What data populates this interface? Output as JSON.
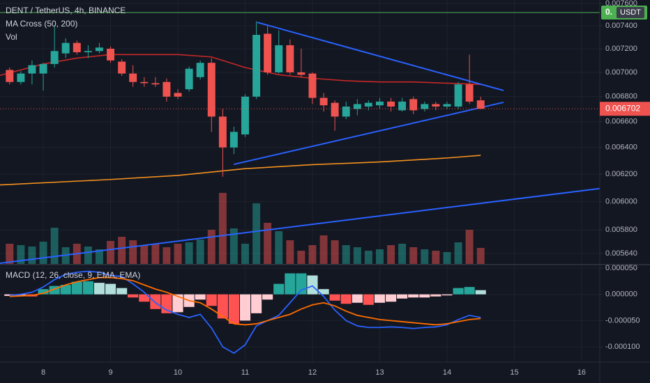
{
  "chart_data": [
    {
      "type": "candlestick",
      "title": "DENT / TetherUS, 4h, BINANCE",
      "indicators": [
        "MA Cross (50, 200)",
        "Vol"
      ],
      "log": true,
      "grid": true,
      "ylim": [
        0.005565,
        0.007631
      ],
      "yticks": [
        {
          "value": 0.0076,
          "label": "0.007600"
        },
        {
          "value": 0.0074,
          "label": "0.007400"
        },
        {
          "value": 0.0072,
          "label": "0.007200"
        },
        {
          "value": 0.007,
          "label": "0.007000"
        },
        {
          "value": 0.0068,
          "label": "0.006800"
        },
        {
          "value": 0.0066,
          "label": "0.006600"
        },
        {
          "value": 0.0064,
          "label": "0.006400"
        },
        {
          "value": 0.0062,
          "label": "0.006200"
        },
        {
          "value": 0.006,
          "label": "0.006000"
        },
        {
          "value": 0.0058,
          "label": "0.005800"
        },
        {
          "value": 0.00564,
          "label": "0.005640"
        }
      ],
      "xlim": [
        7.357,
        16.27
      ],
      "xticks": [
        8,
        9,
        10,
        11,
        12,
        13,
        14,
        15,
        16
      ],
      "x": [
        7.5,
        7.667,
        7.833,
        8,
        8.167,
        8.333,
        8.5,
        8.667,
        8.833,
        9,
        9.167,
        9.333,
        9.5,
        9.667,
        9.833,
        10,
        10.167,
        10.333,
        10.5,
        10.667,
        10.833,
        11,
        11.167,
        11.333,
        11.5,
        11.667,
        11.833,
        12,
        12.167,
        12.333,
        12.5,
        12.667,
        12.833,
        13,
        13.167,
        13.333,
        13.5,
        13.667,
        13.833,
        14,
        14.167,
        14.333,
        14.5
      ],
      "open": [
        0.00702,
        0.00692,
        0.00699,
        0.00699,
        0.00707,
        0.00716,
        0.00725,
        0.00717,
        0.00718,
        0.0072,
        0.00709,
        0.00699,
        0.00692,
        0.00691,
        0.00692,
        0.00683,
        0.00686,
        0.00696,
        0.00708,
        0.00664,
        0.0064,
        0.0065,
        0.0068,
        0.00733,
        0.007,
        0.00723,
        0.007,
        0.00699,
        0.00679,
        0.00675,
        0.00664,
        0.0067,
        0.00672,
        0.00673,
        0.00676,
        0.00669,
        0.00678,
        0.0067,
        0.00674,
        0.00672,
        0.00672,
        0.0069,
        0.00677
      ],
      "high": [
        0.00704,
        0.00701,
        0.0071,
        0.00708,
        0.0074,
        0.00729,
        0.00727,
        0.00723,
        0.00725,
        0.00722,
        0.00711,
        0.00706,
        0.00696,
        0.00696,
        0.00695,
        0.00686,
        0.00705,
        0.0071,
        0.00712,
        0.0067,
        0.00656,
        0.00682,
        0.00744,
        0.0074,
        0.00736,
        0.00728,
        0.0072,
        0.007,
        0.00683,
        0.00677,
        0.00676,
        0.00678,
        0.00677,
        0.00679,
        0.00679,
        0.00679,
        0.0068,
        0.00676,
        0.00676,
        0.00676,
        0.00692,
        0.00715,
        0.0068
      ],
      "low": [
        0.0069,
        0.0069,
        0.0069,
        0.00685,
        0.00704,
        0.00712,
        0.00715,
        0.00712,
        0.00716,
        0.00708,
        0.00697,
        0.00688,
        0.00688,
        0.00688,
        0.00676,
        0.00678,
        0.00684,
        0.00694,
        0.00652,
        0.00618,
        0.00635,
        0.00648,
        0.00678,
        0.00698,
        0.00699,
        0.00698,
        0.00696,
        0.00674,
        0.00668,
        0.00653,
        0.00662,
        0.00665,
        0.00669,
        0.0067,
        0.00668,
        0.00668,
        0.00666,
        0.00668,
        0.00669,
        0.0067,
        0.0067,
        0.00674,
        0.0067
      ],
      "close": [
        0.00692,
        0.00699,
        0.00706,
        0.00707,
        0.00718,
        0.00725,
        0.00717,
        0.00718,
        0.00721,
        0.0071,
        0.00699,
        0.00692,
        0.00691,
        0.0069,
        0.0068,
        0.0068,
        0.00703,
        0.00708,
        0.00664,
        0.0064,
        0.00652,
        0.0068,
        0.00732,
        0.007,
        0.00723,
        0.007,
        0.00698,
        0.00679,
        0.00673,
        0.00664,
        0.00672,
        0.00674,
        0.00675,
        0.00676,
        0.00672,
        0.00676,
        0.00669,
        0.00674,
        0.00672,
        0.00674,
        0.0069,
        0.00676,
        0.006702
      ],
      "up_color": "#26a69a",
      "down_color": "#ef5350",
      "volume": [
        30,
        28,
        26,
        33,
        53,
        25,
        30,
        26,
        22,
        34,
        40,
        35,
        28,
        30,
        25,
        30,
        32,
        36,
        50,
        103,
        52,
        30,
        88,
        60,
        48,
        35,
        20,
        28,
        42,
        35,
        28,
        25,
        20,
        22,
        28,
        30,
        25,
        22,
        20,
        18,
        32,
        50,
        24
      ],
      "volume_colors": [
        "rgba(38,166,154,0.5)",
        "rgba(239,83,80,0.5)"
      ],
      "lines": [
        {
          "color": "#c62828",
          "x": [
            7.357,
            8,
            8.5,
            9,
            9.5,
            10,
            10.5,
            11,
            11.5,
            12,
            12.5,
            13,
            13.5,
            14,
            14.5
          ],
          "values": [
            0.006975,
            0.00707,
            0.00712,
            0.00715,
            0.00715,
            0.00715,
            0.00713,
            0.00704,
            0.00698,
            0.00695,
            0.00693,
            0.00692,
            0.00692,
            0.00691,
            0.0069
          ]
        },
        {
          "color": "#f5911e",
          "x": [
            7.357,
            9,
            10,
            11,
            12,
            13,
            14,
            14.5
          ],
          "values": [
            0.00612,
            0.00616,
            0.00619,
            0.00624,
            0.00627,
            0.00629,
            0.00632,
            0.00634
          ]
        }
      ],
      "drawings": [
        {
          "color": "#2962ff",
          "x": [
            11.18,
            14.84
          ],
          "values": [
            0.00743,
            0.00685
          ]
        },
        {
          "color": "#2962ff",
          "x": [
            10.83,
            14.84
          ],
          "values": [
            0.006272,
            0.006754
          ]
        },
        {
          "color": "#2962ff",
          "x": [
            7.357,
            16.27
          ],
          "values": [
            0.005574,
            0.006094
          ]
        }
      ],
      "alert": {
        "value": 0.007518,
        "label": "0.",
        "tag": "USDT",
        "color": "#4caf50"
      }
    },
    {
      "type": "macd",
      "title": "MACD (12, 26, close, 9, EMA, EMA)",
      "grid": true,
      "ylim": [
        -0.000129,
        5.66e-05
      ],
      "yticks": [
        {
          "value": 5e-05,
          "label": "0.000050"
        },
        {
          "value": 0,
          "label": "0.000000"
        },
        {
          "value": -5e-05,
          "label": "-0.000050"
        },
        {
          "value": -0.0001,
          "label": "-0.000100"
        }
      ],
      "histogram": [
        -3e-06,
        -3e-06,
        -4e-06,
        1e-05,
        1.6e-05,
        1.8e-05,
        2.4e-05,
        2.5e-05,
        2.2e-05,
        2e-05,
        1.2e-05,
        -6e-06,
        -1.4e-05,
        -2.8e-05,
        -3.6e-05,
        -3.4e-05,
        -2.4e-05,
        -1e-05,
        -2.2e-05,
        -4.6e-05,
        -5.6e-05,
        -5e-05,
        -3.6e-05,
        -1e-05,
        2e-05,
        4e-05,
        4e-05,
        3.6e-05,
        1e-05,
        -1.2e-05,
        -1.8e-05,
        -1.6e-05,
        -2e-05,
        -1.6e-05,
        -1.4e-05,
        -8e-06,
        -6e-06,
        -6e-06,
        -4e-06,
        -2e-06,
        1.2e-05,
        1.4e-05,
        8e-06
      ],
      "histogram_colors": [
        "#26a69a",
        "#b2dfdb",
        "#ffcdd2",
        "#ff5252"
      ],
      "series": [
        {
          "color": "#2962ff",
          "values": [
            -2e-06,
            0,
            4e-06,
            1.4e-05,
            2.8e-05,
            3.8e-05,
            4.2e-05,
            4.4e-05,
            4.2e-05,
            3.6e-05,
            3.4e-05,
            2e-05,
            4e-06,
            -1.6e-05,
            -3e-05,
            -3.8e-05,
            -4.4e-05,
            -3.8e-05,
            -6.4e-05,
            -0.0001,
            -0.000112,
            -9.6e-05,
            -6e-05,
            -5e-05,
            -4e-05,
            -1.6e-05,
            8e-06,
            1.6e-05,
            -4e-06,
            -3e-05,
            -5e-05,
            -6e-05,
            -6.3e-05,
            -6.3e-05,
            -6.2e-05,
            -6.3e-05,
            -6.5e-05,
            -6.3e-05,
            -6.2e-05,
            -5.8e-05,
            -4.8e-05,
            -4e-05,
            -4.4e-05
          ]
        },
        {
          "color": "#ff6d00",
          "values": [
            -4e-06,
            -3e-06,
            -2e-06,
            2e-06,
            1e-05,
            1.8e-05,
            2.4e-05,
            2.8e-05,
            3.2e-05,
            3.2e-05,
            3e-05,
            2.6e-05,
            1.8e-05,
            1e-05,
            4e-06,
            -4e-06,
            -1.2e-05,
            -1.6e-05,
            -2.8e-05,
            -4.2e-05,
            -5.6e-05,
            -5.8e-05,
            -5.6e-05,
            -5e-05,
            -4.4e-05,
            -3.8e-05,
            -2.8e-05,
            -2e-05,
            -1.6e-05,
            -2.2e-05,
            -3.2e-05,
            -4e-05,
            -4.4e-05,
            -4.8e-05,
            -5e-05,
            -5.2e-05,
            -5.4e-05,
            -5.6e-05,
            -5.8e-05,
            -5.6e-05,
            -5.2e-05,
            -4.8e-05,
            -4.6e-05
          ]
        }
      ]
    }
  ]
}
